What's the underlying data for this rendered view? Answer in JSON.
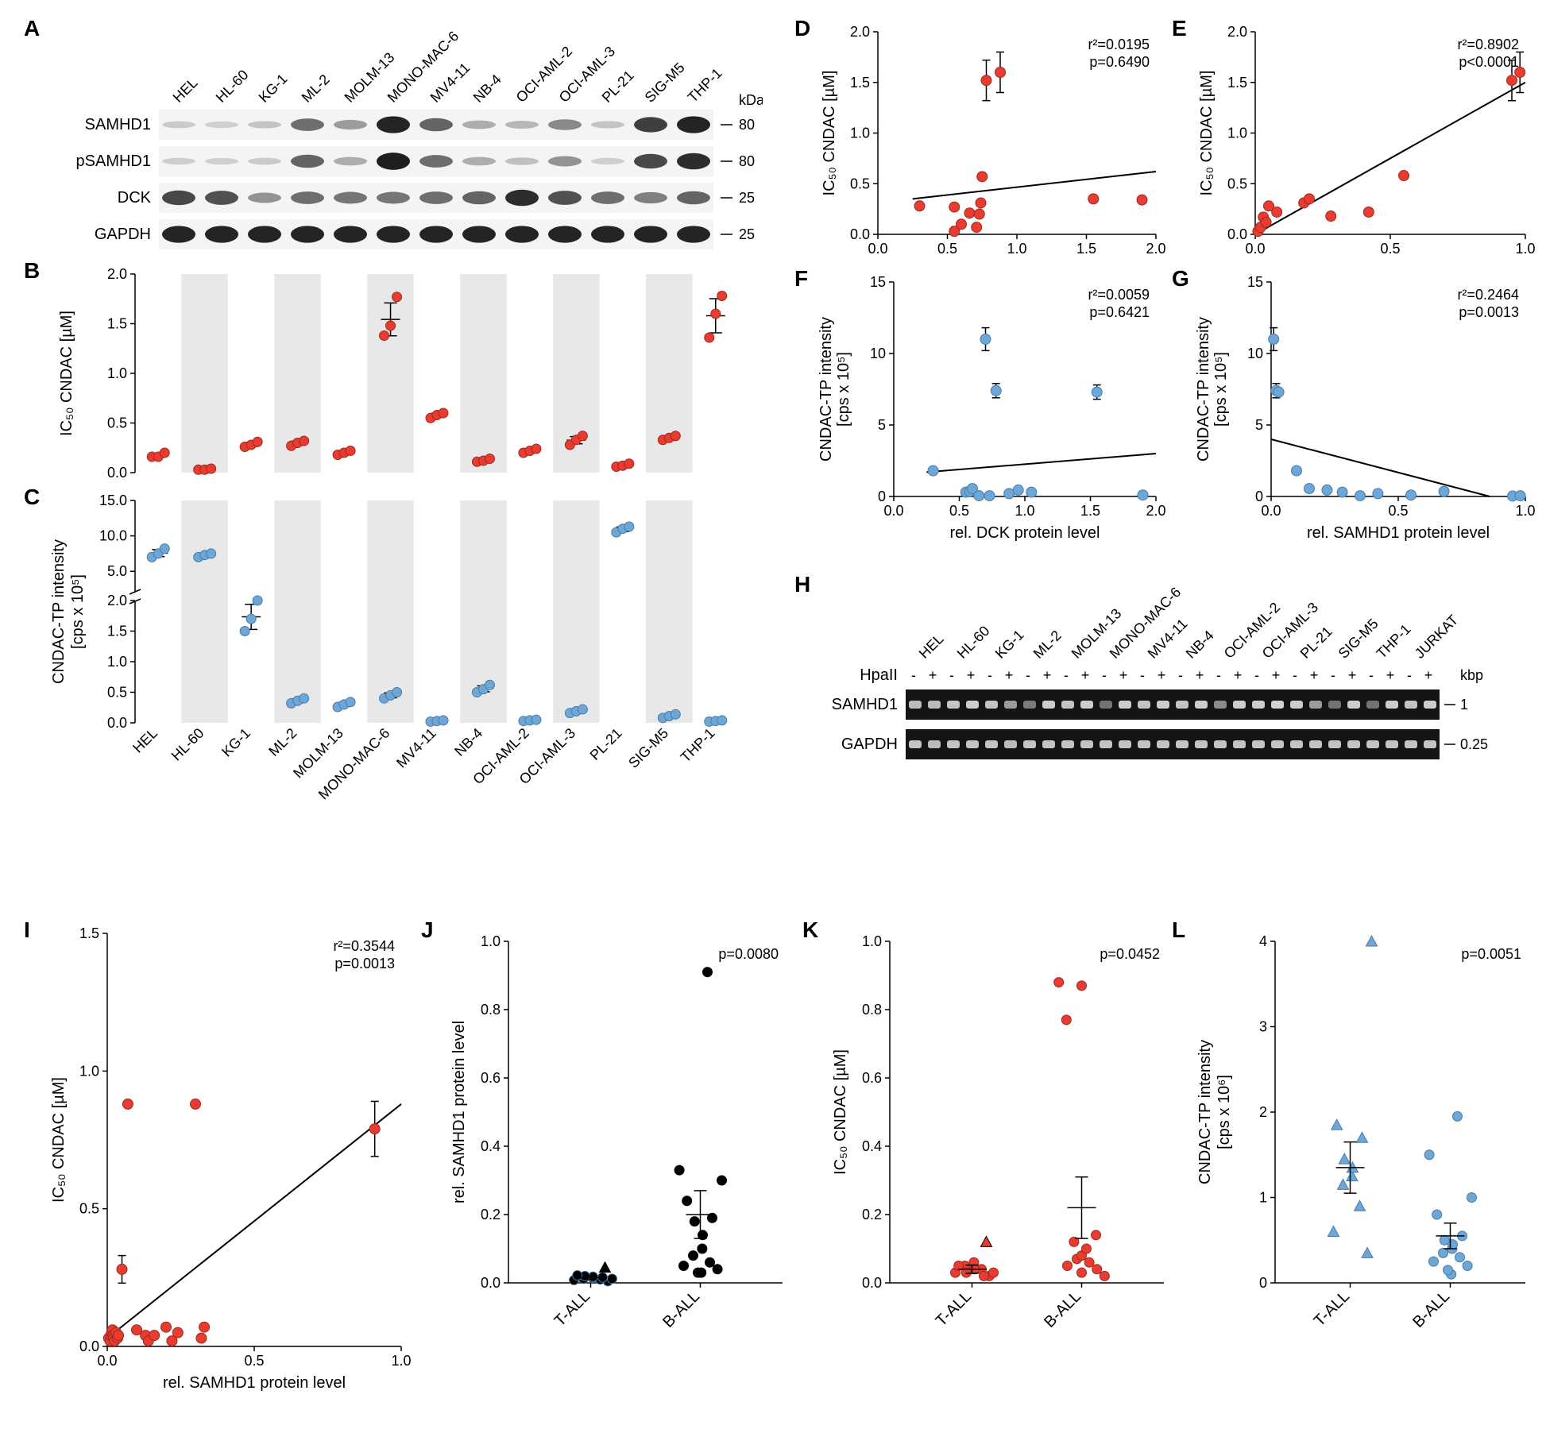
{
  "colors": {
    "red": "#e73c2f",
    "blue": "#6ca7d8",
    "black": "#000000",
    "stripe": "#e8e8e8",
    "blot_bg": "#f2f2f2",
    "blot_band": "#1a1a1a",
    "gel_bg": "#141414",
    "gel_band": "#dcdcdc"
  },
  "fonts": {
    "panel_label_size": 28,
    "axis_title_size": 20,
    "tick_label_size": 18,
    "cell_line_size": 18,
    "stat_size": 18
  },
  "cell_lines": [
    "HEL",
    "HL-60",
    "KG-1",
    "ML-2",
    "MOLM-13",
    "MONO-MAC-6",
    "MV4-11",
    "NB-4",
    "OCI-AML-2",
    "OCI-AML-3",
    "PL-21",
    "SIG-M5",
    "THP-1"
  ],
  "panelA": {
    "rows": [
      "SAMHD1",
      "pSAMHD1",
      "DCK",
      "GAPDH"
    ],
    "kda": [
      "80",
      "80",
      "25",
      "25"
    ],
    "kda_label": "kDa",
    "band_intensity": {
      "SAMHD1": [
        0.05,
        0.02,
        0.08,
        0.55,
        0.3,
        0.95,
        0.6,
        0.2,
        0.15,
        0.4,
        0.08,
        0.8,
        0.95
      ],
      "pSAMHD1": [
        0.03,
        0.02,
        0.05,
        0.6,
        0.2,
        0.98,
        0.55,
        0.2,
        0.1,
        0.35,
        0.02,
        0.75,
        0.9
      ],
      "DCK": [
        0.75,
        0.7,
        0.35,
        0.55,
        0.5,
        0.5,
        0.55,
        0.6,
        0.9,
        0.7,
        0.55,
        0.45,
        0.6
      ],
      "GAPDH": [
        0.95,
        0.95,
        0.95,
        0.95,
        0.95,
        0.95,
        0.95,
        0.95,
        0.95,
        0.95,
        0.95,
        0.95,
        0.95
      ]
    }
  },
  "panelB": {
    "ylabel": "IC₅₀ CNDAC [µM]",
    "ylim": [
      0,
      2.0
    ],
    "ytick_step": 0.5,
    "values": [
      [
        0.16,
        0.16,
        0.2
      ],
      [
        0.03,
        0.03,
        0.04
      ],
      [
        0.26,
        0.28,
        0.31
      ],
      [
        0.27,
        0.3,
        0.32
      ],
      [
        0.18,
        0.2,
        0.22
      ],
      [
        1.38,
        1.48,
        1.77
      ],
      [
        0.55,
        0.58,
        0.6
      ],
      [
        0.11,
        0.12,
        0.14
      ],
      [
        0.2,
        0.22,
        0.24
      ],
      [
        0.28,
        0.33,
        0.37
      ],
      [
        0.06,
        0.07,
        0.09
      ],
      [
        0.33,
        0.35,
        0.37
      ],
      [
        1.36,
        1.6,
        1.78
      ]
    ]
  },
  "panelC": {
    "ylabel": "CNDAC-TP intensity",
    "ylabel2": "[cps x 10⁵]",
    "ylim": [
      0,
      15.0
    ],
    "yticks": [
      0,
      0.5,
      1.0,
      1.5,
      2.0,
      5.0,
      10.0,
      15.0
    ],
    "break_at": 2.0,
    "values": [
      [
        7.0,
        7.5,
        8.2
      ],
      [
        7.0,
        7.3,
        7.5
      ],
      [
        1.5,
        1.7,
        2.0
      ],
      [
        0.32,
        0.36,
        0.4
      ],
      [
        0.26,
        0.3,
        0.34
      ],
      [
        0.4,
        0.45,
        0.5
      ],
      [
        0.02,
        0.03,
        0.04
      ],
      [
        0.5,
        0.55,
        0.62
      ],
      [
        0.03,
        0.04,
        0.05
      ],
      [
        0.16,
        0.19,
        0.22
      ],
      [
        10.5,
        11.0,
        11.3
      ],
      [
        0.08,
        0.11,
        0.14
      ],
      [
        0.02,
        0.03,
        0.04
      ]
    ]
  },
  "panelD": {
    "xlabel": "",
    "ylabel": "IC₅₀ CNDAC [µM]",
    "xlim": [
      0,
      2.0
    ],
    "ylim": [
      0,
      2.0
    ],
    "xtick_step": 0.5,
    "ytick_step": 0.5,
    "r2": "r²=0.0195",
    "p": "p=0.6490",
    "points": [
      [
        0.3,
        0.28
      ],
      [
        0.55,
        0.27
      ],
      [
        0.55,
        0.03
      ],
      [
        0.6,
        0.1
      ],
      [
        0.66,
        0.21
      ],
      [
        0.71,
        0.07
      ],
      [
        0.73,
        0.2
      ],
      [
        0.74,
        0.31
      ],
      [
        0.75,
        0.57
      ],
      [
        0.78,
        1.52
      ],
      [
        0.88,
        1.6
      ],
      [
        1.55,
        0.35
      ],
      [
        1.9,
        0.34
      ]
    ],
    "err": [
      [
        0.78,
        1.52,
        0.2
      ],
      [
        0.88,
        1.6,
        0.2
      ]
    ],
    "regline": [
      [
        0.25,
        0.35
      ],
      [
        2.0,
        0.62
      ]
    ]
  },
  "panelE": {
    "xlabel": "",
    "ylabel": "IC₅₀ CNDAC [µM]",
    "xlim": [
      0,
      1.0
    ],
    "ylim": [
      0,
      2.0
    ],
    "xtick_step": 0.5,
    "ytick_step": 0.5,
    "r2": "r²=0.8902",
    "p": "p<0.0001",
    "points": [
      [
        0.01,
        0.03
      ],
      [
        0.02,
        0.07
      ],
      [
        0.03,
        0.17
      ],
      [
        0.04,
        0.12
      ],
      [
        0.05,
        0.28
      ],
      [
        0.08,
        0.22
      ],
      [
        0.18,
        0.31
      ],
      [
        0.2,
        0.35
      ],
      [
        0.28,
        0.18
      ],
      [
        0.42,
        0.22
      ],
      [
        0.55,
        0.58
      ],
      [
        0.95,
        1.52
      ],
      [
        0.98,
        1.6
      ]
    ],
    "err": [
      [
        0.95,
        1.52,
        0.2
      ],
      [
        0.98,
        1.6,
        0.2
      ]
    ],
    "regline": [
      [
        0,
        0.0
      ],
      [
        1.0,
        1.5
      ]
    ]
  },
  "panelF": {
    "xlabel": "rel. DCK protein level",
    "ylabel": "CNDAC-TP intensity",
    "ylabel2": "[cps x 10⁵]",
    "xlim": [
      0,
      2.0
    ],
    "ylim": [
      0,
      15
    ],
    "xtick_step": 0.5,
    "ytick_step": 5,
    "r2": "r²=0.0059",
    "p": "p=0.6421",
    "points": [
      [
        0.3,
        1.8
      ],
      [
        0.55,
        0.3
      ],
      [
        0.58,
        0.35
      ],
      [
        0.6,
        0.55
      ],
      [
        0.65,
        0.05
      ],
      [
        0.7,
        11.0
      ],
      [
        0.73,
        0.05
      ],
      [
        0.78,
        7.4
      ],
      [
        0.88,
        0.2
      ],
      [
        0.95,
        0.45
      ],
      [
        1.05,
        0.3
      ],
      [
        1.55,
        7.3
      ],
      [
        1.9,
        0.1
      ]
    ],
    "err": [
      [
        0.7,
        11.0,
        0.8
      ],
      [
        0.78,
        7.4,
        0.5
      ],
      [
        1.55,
        7.3,
        0.5
      ]
    ],
    "regline": [
      [
        0.25,
        1.7
      ],
      [
        2.0,
        3.0
      ]
    ]
  },
  "panelG": {
    "xlabel": "rel. SAMHD1 protein level",
    "ylabel": "CNDAC-TP intensity",
    "ylabel2": "[cps x 10⁵]",
    "xlim": [
      0,
      1.0
    ],
    "ylim": [
      0,
      15
    ],
    "xtick_step": 0.5,
    "ytick_step": 5,
    "r2": "r²=0.2464",
    "p": "p=0.0013",
    "points": [
      [
        0.01,
        11.0
      ],
      [
        0.02,
        7.4
      ],
      [
        0.03,
        7.3
      ],
      [
        0.1,
        1.8
      ],
      [
        0.15,
        0.55
      ],
      [
        0.22,
        0.45
      ],
      [
        0.28,
        0.3
      ],
      [
        0.35,
        0.05
      ],
      [
        0.42,
        0.2
      ],
      [
        0.55,
        0.1
      ],
      [
        0.68,
        0.35
      ],
      [
        0.95,
        0.03
      ],
      [
        0.98,
        0.05
      ]
    ],
    "err": [
      [
        0.01,
        11.0,
        0.8
      ],
      [
        0.02,
        7.4,
        0.5
      ]
    ],
    "regline": [
      [
        0,
        4.0
      ],
      [
        0.86,
        0.0
      ]
    ]
  },
  "panelH": {
    "cell_lines": [
      "HEL",
      "HL-60",
      "KG-1",
      "ML-2",
      "MOLM-13",
      "MONO-MAC-6",
      "MV4-11",
      "NB-4",
      "OCI-AML-2",
      "OCI-AML-3",
      "PL-21",
      "SIG-M5",
      "THP-1",
      "JURKAT"
    ],
    "hpa_label": "HpaII",
    "hpa_pairs": [
      "-",
      "+"
    ],
    "rows": [
      "SAMHD1",
      "GAPDH"
    ],
    "kbp_label": "kbp",
    "kbp": [
      "1",
      "0.25"
    ],
    "samhd1_intensity": [
      0.8,
      0.8,
      0.85,
      0.9,
      0.85,
      0.6,
      0.4,
      0.9,
      0.85,
      0.9,
      0.35,
      0.9,
      0.85,
      0.9,
      0.85,
      0.9,
      0.5,
      0.9,
      0.9,
      0.95,
      0.9,
      0.6,
      0.35,
      0.9,
      0.35,
      0.9,
      0.85,
      0.9
    ],
    "gapdh_intensity": [
      0.85,
      0.8,
      0.85,
      0.85,
      0.85,
      0.8,
      0.85,
      0.85,
      0.85,
      0.85,
      0.85,
      0.85,
      0.85,
      0.85,
      0.85,
      0.85,
      0.85,
      0.85,
      0.85,
      0.85,
      0.85,
      0.85,
      0.85,
      0.85,
      0.85,
      0.85,
      0.85,
      0.85
    ]
  },
  "panelI": {
    "xlabel": "rel. SAMHD1 protein level",
    "ylabel": "IC₅₀ CNDAC [µM]",
    "xlim": [
      0,
      1.0
    ],
    "ylim": [
      0,
      1.5
    ],
    "xtick_step": 0.5,
    "ytick_step": 0.5,
    "r2": "r²=0.3544",
    "p": "p=0.0013",
    "points": [
      [
        0.005,
        0.03
      ],
      [
        0.01,
        0.02
      ],
      [
        0.012,
        0.04
      ],
      [
        0.015,
        0.05
      ],
      [
        0.018,
        0.06
      ],
      [
        0.02,
        0.04
      ],
      [
        0.022,
        0.03
      ],
      [
        0.025,
        0.02
      ],
      [
        0.03,
        0.05
      ],
      [
        0.035,
        0.03
      ],
      [
        0.038,
        0.04
      ],
      [
        0.05,
        0.28
      ],
      [
        0.07,
        0.88
      ],
      [
        0.1,
        0.06
      ],
      [
        0.13,
        0.04
      ],
      [
        0.14,
        0.02
      ],
      [
        0.16,
        0.04
      ],
      [
        0.2,
        0.07
      ],
      [
        0.22,
        0.02
      ],
      [
        0.24,
        0.05
      ],
      [
        0.3,
        0.88
      ],
      [
        0.32,
        0.03
      ],
      [
        0.33,
        0.07
      ],
      [
        0.91,
        0.79
      ]
    ],
    "err": [
      [
        0.05,
        0.28,
        0.05
      ],
      [
        0.91,
        0.79,
        0.1
      ]
    ],
    "regline": [
      [
        0,
        0.03
      ],
      [
        1.0,
        0.88
      ]
    ]
  },
  "panelJ": {
    "ylabel": "rel. SAMHD1 protein level",
    "ylim": [
      0,
      1.0
    ],
    "ytick_step": 0.2,
    "groups": [
      "T-ALL",
      "B-ALL"
    ],
    "p": "p=0.0080",
    "tall": {
      "circles": [
        0.005,
        0.008,
        0.01,
        0.012,
        0.015,
        0.018,
        0.02,
        0.016,
        0.022,
        0.012
      ],
      "triangle": 0.045,
      "mean": 0.015,
      "sem": 0.005
    },
    "ball": {
      "circles": [
        0.03,
        0.03,
        0.04,
        0.05,
        0.06,
        0.08,
        0.1,
        0.14,
        0.18,
        0.19,
        0.24,
        0.3,
        0.33,
        0.91
      ],
      "mean": 0.2,
      "sem": 0.07
    }
  },
  "panelK": {
    "ylabel": "IC₅₀ CNDAC [µM]",
    "ylim": [
      0,
      1.0
    ],
    "ytick_step": 0.2,
    "groups": [
      "T-ALL",
      "B-ALL"
    ],
    "p": "p=0.0452",
    "tall": {
      "circles": [
        0.02,
        0.03,
        0.04,
        0.05,
        0.06,
        0.04,
        0.03,
        0.02,
        0.05,
        0.03
      ],
      "triangle": 0.12,
      "mean": 0.04,
      "sem": 0.012
    },
    "ball": {
      "circles": [
        0.02,
        0.03,
        0.04,
        0.05,
        0.06,
        0.07,
        0.08,
        0.1,
        0.12,
        0.14,
        0.77,
        0.87,
        0.88
      ],
      "mean": 0.22,
      "sem": 0.09
    }
  },
  "panelL": {
    "ylabel": "CNDAC-TP intensity",
    "ylabel2": "[cps x 10⁶]",
    "ylim": [
      0,
      4
    ],
    "ytick_step": 1,
    "groups": [
      "T-ALL",
      "B-ALL"
    ],
    "p": "p=0.0051",
    "tall": {
      "triangles": [
        0.35,
        0.6,
        0.9,
        1.15,
        1.25,
        1.35,
        1.45,
        1.7,
        1.85,
        4.0
      ],
      "mean": 1.35,
      "sem": 0.3
    },
    "ball": {
      "circles": [
        0.1,
        0.15,
        0.2,
        0.25,
        0.3,
        0.35,
        0.4,
        0.45,
        0.5,
        0.55,
        0.8,
        1.0,
        1.5,
        1.95
      ],
      "mean": 0.55,
      "sem": 0.15
    }
  }
}
